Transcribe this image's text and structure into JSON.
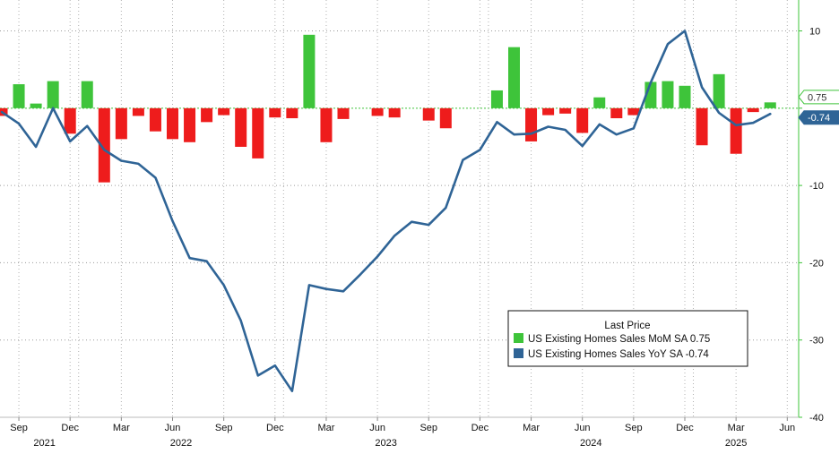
{
  "chart_data": {
    "type": "bar+line",
    "title": "",
    "xlabel": "",
    "ylabel": "",
    "ylim": [
      -40,
      14
    ],
    "y_ticks": [
      10,
      0,
      -10,
      -20,
      -30,
      -40
    ],
    "y_tick_labels": [
      "10",
      "",
      "-10",
      "-20",
      "-30",
      "-40"
    ],
    "grid": true,
    "x_month_labels": [
      "Sep",
      "Dec",
      "Mar",
      "Jun",
      "Sep",
      "Dec",
      "Mar",
      "Jun",
      "Sep",
      "Dec",
      "Mar",
      "Jun",
      "Sep",
      "Dec",
      "Mar",
      "Jun"
    ],
    "x_year_labels": [
      "2021",
      "2022",
      "2023",
      "2024",
      "2025"
    ],
    "legend": {
      "title": "Last Price",
      "position": "bottom-right",
      "entries": [
        {
          "label": "US Existing Homes Sales MoM SA",
          "value": "0.75",
          "color": "#3ec43a"
        },
        {
          "label": "US Existing Homes Sales YoY SA",
          "value": "-0.74",
          "color": "#2f6496"
        }
      ]
    },
    "last_value_tags": [
      {
        "text": "0.75",
        "color": "#3ec43a"
      },
      {
        "text": "-0.74",
        "color": "#2f6496"
      }
    ],
    "x": [
      "2021-08",
      "2021-09",
      "2021-10",
      "2021-11",
      "2021-12",
      "2022-01",
      "2022-02",
      "2022-03",
      "2022-04",
      "2022-05",
      "2022-06",
      "2022-07",
      "2022-08",
      "2022-09",
      "2022-10",
      "2022-11",
      "2022-12",
      "2023-01",
      "2023-02",
      "2023-03",
      "2023-04",
      "2023-05",
      "2023-06",
      "2023-07",
      "2023-08",
      "2023-09",
      "2023-10",
      "2023-11",
      "2023-12",
      "2024-01",
      "2024-02",
      "2024-03",
      "2024-04",
      "2024-05",
      "2024-06",
      "2024-07",
      "2024-08",
      "2024-09",
      "2024-10",
      "2024-11",
      "2024-12",
      "2025-01",
      "2025-02",
      "2025-03",
      "2025-04",
      "2025-05"
    ],
    "series": [
      {
        "name": "US Existing Homes Sales MoM SA",
        "kind": "bar",
        "pos_color": "#3ec43a",
        "neg_color": "#ee1c1c",
        "values": [
          -1.0,
          3.1,
          0.6,
          3.5,
          -3.3,
          3.5,
          -9.6,
          -4.0,
          -1.0,
          -3.0,
          -4.0,
          -4.4,
          -1.8,
          -0.9,
          -5.0,
          -6.5,
          -1.2,
          -1.3,
          9.5,
          -4.4,
          -1.4,
          0.0,
          -1.0,
          -1.2,
          0.0,
          -1.6,
          -2.6,
          0.0,
          0.0,
          2.3,
          7.9,
          -4.3,
          -0.9,
          -0.7,
          -3.2,
          1.4,
          -1.3,
          -0.9,
          3.4,
          3.5,
          2.9,
          -4.8,
          4.4,
          -5.9,
          -0.5,
          0.75
        ]
      },
      {
        "name": "US Existing Homes Sales YoY SA",
        "kind": "line",
        "color": "#2f6496",
        "values": [
          -0.5,
          -2.0,
          -5.0,
          0.0,
          -4.3,
          -2.3,
          -5.4,
          -6.8,
          -7.2,
          -9.0,
          -14.6,
          -19.4,
          -19.8,
          -22.9,
          -27.5,
          -34.6,
          -33.3,
          -36.6,
          -22.9,
          -23.4,
          -23.7,
          -21.5,
          -19.2,
          -16.5,
          -14.7,
          -15.1,
          -12.9,
          -6.7,
          -5.4,
          -1.8,
          -3.4,
          -3.3,
          -2.4,
          -2.8,
          -4.9,
          -2.1,
          -3.4,
          -2.6,
          3.3,
          8.3,
          10.0,
          2.7,
          -0.6,
          -2.2,
          -1.9,
          -0.74
        ]
      }
    ]
  }
}
